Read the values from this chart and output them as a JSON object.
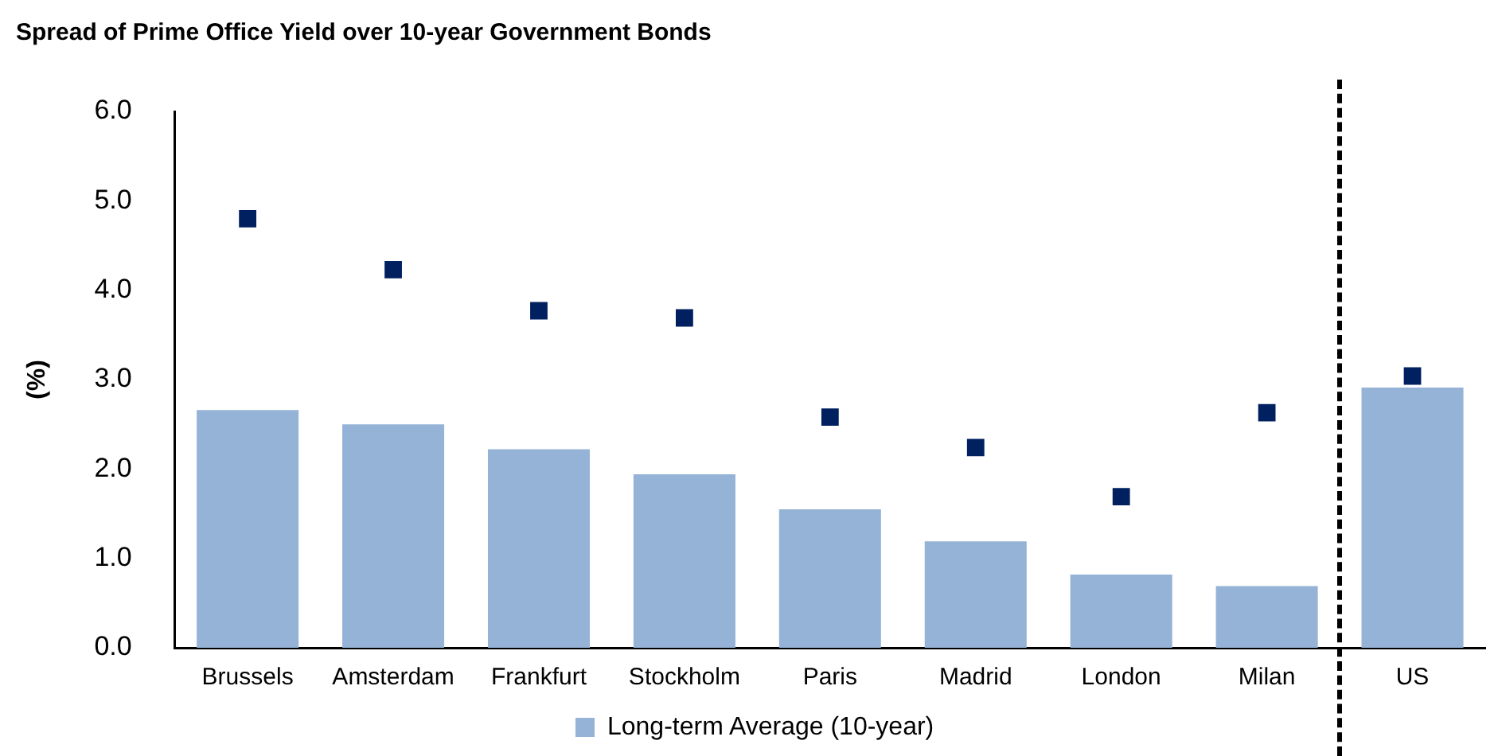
{
  "chart_data": {
    "type": "bar",
    "title": "Spread of Prime Office Yield over 10-year Government Bonds",
    "ylabel": "(%)",
    "categories": [
      "Brussels",
      "Amsterdam",
      "Frankfurt",
      "Stockholm",
      "Paris",
      "Madrid",
      "London",
      "Milan",
      "US"
    ],
    "series": [
      {
        "name": "Long-term Average (10-year)",
        "color": "#95b3d7",
        "values": [
          2.66,
          2.5,
          2.22,
          1.94,
          1.55,
          1.19,
          0.82,
          0.69,
          2.91
        ]
      },
      {
        "type": "scatter",
        "color": "#002060",
        "marker": "square",
        "x": [
          "Brussels",
          "Amsterdam",
          "Frankfurt",
          "Stockholm",
          "Paris",
          "Madrid",
          "London",
          "Milan",
          "US"
        ],
        "values": [
          4.8,
          4.23,
          3.77,
          3.69,
          2.58,
          2.24,
          1.69,
          2.63,
          3.04
        ]
      }
    ],
    "ylim": [
      0,
      6
    ],
    "yticks": [
      {
        "value": 0,
        "label": "0.0"
      },
      {
        "value": 1,
        "label": "1.0"
      },
      {
        "value": 2,
        "label": "2.0"
      },
      {
        "value": 3,
        "label": "3.0"
      },
      {
        "value": 4,
        "label": "4.0"
      },
      {
        "value": 5,
        "label": "5.0"
      },
      {
        "value": 6,
        "label": "6.0"
      }
    ],
    "grid": false,
    "legend": "bottom"
  }
}
